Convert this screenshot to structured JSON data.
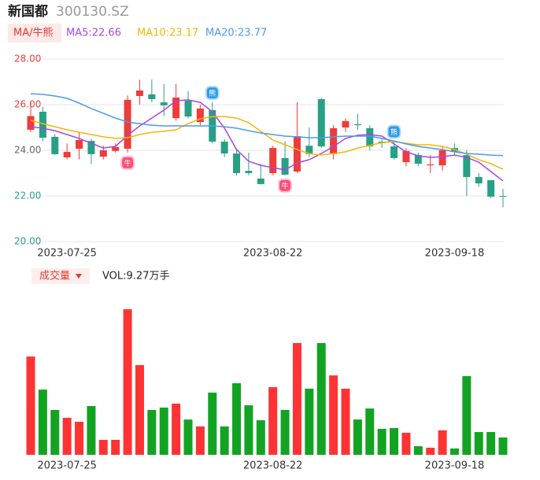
{
  "header": {
    "name": "新国都",
    "code": "300130.SZ",
    "indicator": "MA/牛熊"
  },
  "chart_data": [
    {
      "type": "candlestick",
      "categories": [
        null,
        null,
        null,
        "2023-07-25",
        null,
        null,
        null,
        null,
        null,
        null,
        null,
        null,
        null,
        null,
        null,
        null,
        null,
        null,
        null,
        null,
        "2023-08-22",
        null,
        null,
        null,
        null,
        null,
        null,
        null,
        null,
        null,
        null,
        null,
        null,
        null,
        null,
        "2023-09-18",
        null,
        null,
        null,
        null
      ],
      "open": [
        24.9,
        25.69,
        24.59,
        23.69,
        24.07,
        24.41,
        23.72,
        23.97,
        24.07,
        26.38,
        26.45,
        26.1,
        25.41,
        26.17,
        25.24,
        25.76,
        24.38,
        23.86,
        23.1,
        22.76,
        23.0,
        23.66,
        23.07,
        24.2,
        26.24,
        23.83,
        25.0,
        25.14,
        24.97,
        24.38,
        24.17,
        23.48,
        23.79,
        23.34,
        23.34,
        24.1,
        23.79,
        22.83,
        22.69,
        22.0
      ],
      "close": [
        25.5,
        24.55,
        23.83,
        23.93,
        24.45,
        23.83,
        24.0,
        24.14,
        26.21,
        26.62,
        26.24,
        25.97,
        26.31,
        25.48,
        25.83,
        24.38,
        23.86,
        23.0,
        23.0,
        22.52,
        24.1,
        22.93,
        24.62,
        23.83,
        24.17,
        24.97,
        25.28,
        25.1,
        24.17,
        24.31,
        23.66,
        23.97,
        23.41,
        23.38,
        24.0,
        23.93,
        22.83,
        22.55,
        21.97,
        21.97
      ],
      "high": [
        26.1,
        25.9,
        24.7,
        24.3,
        24.8,
        24.5,
        24.2,
        24.3,
        26.4,
        27.1,
        27.1,
        26.9,
        26.9,
        26.6,
        26.0,
        26.1,
        24.5,
        24.0,
        23.9,
        23.4,
        24.2,
        24.4,
        26.1,
        25.0,
        26.3,
        25.1,
        25.4,
        25.6,
        25.1,
        24.5,
        24.4,
        24.1,
        23.9,
        23.8,
        24.2,
        24.3,
        24.0,
        23.0,
        22.7,
        22.3
      ],
      "low": [
        24.8,
        24.4,
        23.8,
        23.6,
        23.6,
        23.4,
        23.6,
        23.9,
        23.9,
        26.0,
        26.1,
        25.5,
        25.3,
        25.4,
        25.1,
        24.3,
        23.7,
        22.9,
        22.9,
        22.5,
        22.9,
        22.9,
        23.0,
        23.7,
        24.1,
        23.6,
        24.8,
        24.9,
        24.0,
        24.1,
        23.6,
        23.3,
        23.3,
        23.0,
        23.1,
        23.8,
        22.0,
        22.4,
        21.9,
        21.5
      ],
      "up_color": "#ee3b3b",
      "down_color": "#27a085",
      "series": [
        {
          "name": "MA5:22.66",
          "color": "#a646e6",
          "values": [
            25.03,
            24.97,
            24.86,
            24.69,
            24.52,
            24.31,
            24.1,
            24.17,
            24.66,
            25.07,
            25.41,
            25.76,
            26.17,
            26.21,
            26.1,
            25.69,
            24.97,
            24.03,
            23.52,
            23.34,
            23.24,
            23.14,
            23.45,
            23.59,
            23.86,
            24.17,
            24.52,
            24.66,
            24.69,
            24.62,
            24.28,
            23.93,
            23.76,
            23.69,
            23.72,
            23.79,
            23.69,
            23.48,
            23.07,
            22.66
          ]
        },
        {
          "name": "MA10:23.17",
          "color": "#f2b705",
          "values": [
            25.31,
            25.17,
            25.03,
            24.9,
            24.79,
            24.69,
            24.59,
            24.52,
            24.55,
            24.69,
            24.79,
            24.83,
            24.9,
            25.17,
            25.38,
            25.48,
            25.48,
            25.41,
            25.21,
            24.83,
            24.45,
            24.24,
            24.03,
            23.86,
            23.79,
            23.86,
            23.93,
            24.1,
            24.21,
            24.34,
            24.38,
            24.31,
            24.24,
            24.24,
            24.17,
            24.03,
            23.83,
            23.59,
            23.41,
            23.17
          ]
        },
        {
          "name": "MA20:23.77",
          "color": "#4c9be8",
          "values": [
            26.48,
            26.45,
            26.38,
            26.28,
            26.07,
            25.83,
            25.62,
            25.41,
            25.24,
            25.17,
            25.1,
            25.07,
            25.07,
            25.07,
            25.07,
            25.07,
            25.03,
            24.97,
            24.86,
            24.76,
            24.69,
            24.62,
            24.59,
            24.55,
            24.55,
            24.59,
            24.62,
            24.62,
            24.62,
            24.52,
            24.41,
            24.28,
            24.17,
            24.1,
            24.03,
            23.93,
            23.86,
            23.83,
            23.79,
            23.77
          ]
        }
      ],
      "ylim": [
        20,
        28
      ],
      "yticks": [
        {
          "value": 20,
          "label": "20.00",
          "color": "#27a085"
        },
        {
          "value": 22,
          "label": "22.00",
          "color": "#27a085"
        },
        {
          "value": 24,
          "label": "24.00",
          "color": "#666666"
        },
        {
          "value": 26,
          "label": "26.00",
          "color": "#ee3b3b"
        },
        {
          "value": 28,
          "label": "28.00",
          "color": "#ee3b3b"
        }
      ],
      "grid": true,
      "annotations": [
        {
          "index": 8,
          "label": "牛",
          "kind": "bull"
        },
        {
          "index": 15,
          "label": "熊",
          "kind": "bear"
        },
        {
          "index": 21,
          "label": "牛",
          "kind": "bull"
        },
        {
          "index": 30,
          "label": "熊",
          "kind": "bear"
        }
      ]
    },
    {
      "type": "bar",
      "title": "成交量",
      "info": "VOL:9.27万手",
      "categories": [
        null,
        null,
        null,
        "2023-07-25",
        null,
        null,
        null,
        null,
        null,
        null,
        null,
        null,
        null,
        null,
        null,
        null,
        null,
        null,
        null,
        null,
        "2023-08-22",
        null,
        null,
        null,
        null,
        null,
        null,
        null,
        null,
        null,
        null,
        null,
        null,
        null,
        null,
        "2023-09-18",
        null,
        null,
        null,
        null
      ],
      "values": [
        52.6,
        34.9,
        24.0,
        19.8,
        17.7,
        26.1,
        8.0,
        8.0,
        77.9,
        48.0,
        24.0,
        25.3,
        27.4,
        18.9,
        15.2,
        33.3,
        15.2,
        38.3,
        26.5,
        18.5,
        36.2,
        24.0,
        59.8,
        35.4,
        59.8,
        42.5,
        35.4,
        18.9,
        24.8,
        13.9,
        14.3,
        11.8,
        4.6,
        3.8,
        13.1,
        3.4,
        42.1,
        12.2,
        12.2,
        9.27
      ],
      "up_color": "#ff3333",
      "down_color": "#13a323"
    }
  ]
}
